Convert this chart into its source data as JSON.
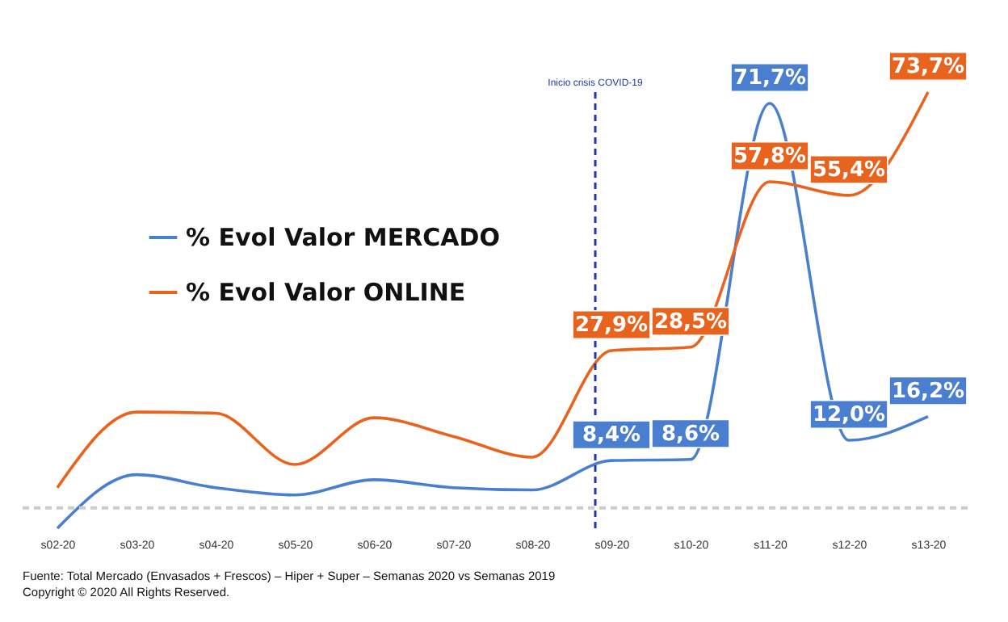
{
  "chart_data": {
    "type": "line",
    "categories": [
      "s02-20",
      "s03-20",
      "s04-20",
      "s05-20",
      "s06-20",
      "s07-20",
      "s08-20",
      "s09-20",
      "s10-20",
      "s11-20",
      "s12-20",
      "s13-20"
    ],
    "series": [
      {
        "name": "% Evol Valor MERCADO",
        "color": "#4a7fcf",
        "values": [
          -3.6,
          5.9,
          3.6,
          2.3,
          5.0,
          3.6,
          3.2,
          8.4,
          8.6,
          71.7,
          12.0,
          16.2
        ],
        "value_labels": [
          null,
          null,
          null,
          null,
          null,
          null,
          null,
          "8,4%",
          "8,6%",
          "71,7%",
          "12,0%",
          "16,2%"
        ]
      },
      {
        "name": "% Evol Valor ONLINE",
        "color": "#e8641e",
        "values": [
          3.6,
          17.0,
          16.8,
          7.7,
          16.0,
          12.7,
          9.0,
          27.9,
          28.5,
          57.8,
          55.4,
          73.7
        ],
        "value_labels": [
          null,
          null,
          null,
          null,
          null,
          null,
          null,
          "27,9%",
          "28,5%",
          "57,8%",
          "55,4%",
          "73,7%"
        ]
      }
    ],
    "legend": "top left",
    "grid": false,
    "tick_labels": "x",
    "ref_lines": [
      {
        "axis": "x",
        "value": "s09-20",
        "label": "Inicio crisis COVID-19",
        "color": "#1f3aa8",
        "line_style": "dashed"
      },
      {
        "axis": "y",
        "value": 0,
        "label": null,
        "color": "#cccccc",
        "line_style": "dashed"
      }
    ],
    "annotations": [
      "Fuente: Total Mercado (Envasados + Frescos) – Hiper + Super – Semanas 2020 vs Semanas 2019",
      "Copyright © 2020 All Rights Reserved."
    ]
  }
}
